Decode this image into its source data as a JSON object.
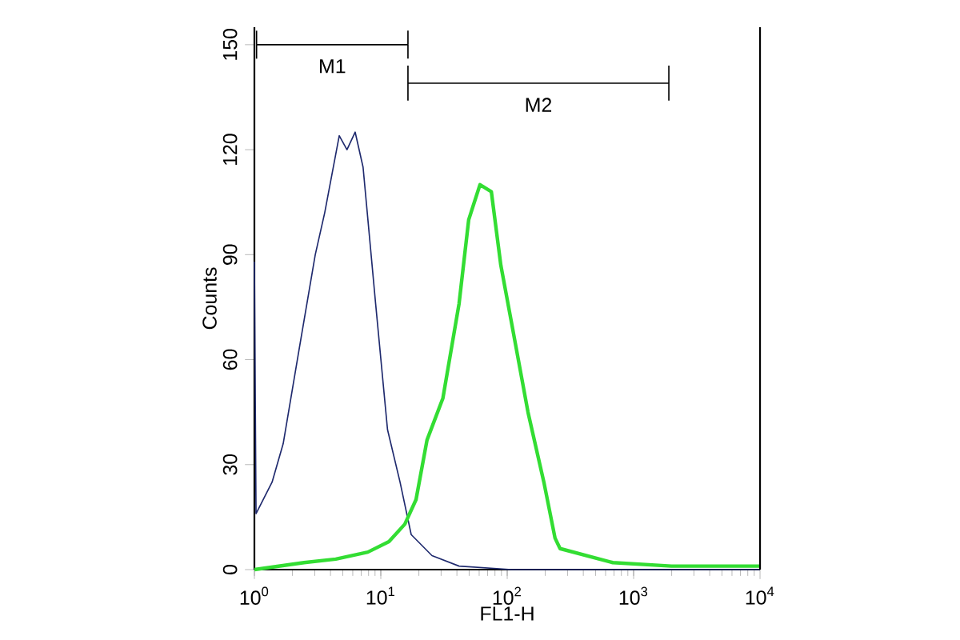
{
  "chart_data": {
    "type": "line",
    "xlabel": "FL1-H",
    "ylabel": "Counts",
    "log": "x",
    "xlim": [
      1,
      10000
    ],
    "ylim": [
      0,
      155
    ],
    "xticks": [
      {
        "value": 1,
        "label": "10$^{0}$"
      },
      {
        "value": 10,
        "label": "10$^{1}$"
      },
      {
        "value": 100,
        "label": "10$^{2}$"
      },
      {
        "value": 1000,
        "label": "10$^{3}$"
      },
      {
        "value": 10000,
        "label": "10$^{4}$"
      }
    ],
    "yticks": [
      0,
      30,
      60,
      90,
      120,
      150
    ],
    "grid": false,
    "marker": "none",
    "line_style": "solid",
    "series": [
      {
        "color": "#1f2a6e",
        "x": [
          1,
          1.03,
          1.38,
          1.69,
          2.26,
          3.03,
          3.6,
          4.69,
          5.4,
          6.27,
          7.24,
          9.1,
          11.3,
          14.2,
          17.4,
          25.4,
          41.6,
          108,
          10000
        ],
        "values": [
          88,
          16,
          25,
          36,
          63,
          90,
          102,
          124,
          120,
          125,
          115,
          76,
          40,
          25,
          10,
          4,
          1,
          0,
          0
        ]
      },
      {
        "color": "#33dd33",
        "x": [
          1,
          2.47,
          4.4,
          7.9,
          11.6,
          15.5,
          19,
          23.2,
          31,
          41.6,
          49.6,
          60.9,
          74.9,
          89,
          108.9,
          146,
          195,
          239,
          262,
          685,
          1990,
          10000
        ],
        "values": [
          0,
          2,
          3,
          5,
          8,
          13,
          20,
          37,
          49,
          76,
          100,
          110,
          108,
          87,
          70,
          45,
          25,
          9,
          6,
          2,
          1,
          1
        ]
      },
      {
        "name": "M1",
        "color": "#000000",
        "x": [
          1.04,
          16.4
        ],
        "values": [
          150,
          150
        ],
        "errors": [
          4,
          4
        ]
      },
      {
        "name": "M2",
        "color": "#000000",
        "x": [
          16.4,
          1900
        ],
        "values": [
          139,
          139
        ],
        "errors": [
          5,
          5
        ]
      }
    ]
  }
}
